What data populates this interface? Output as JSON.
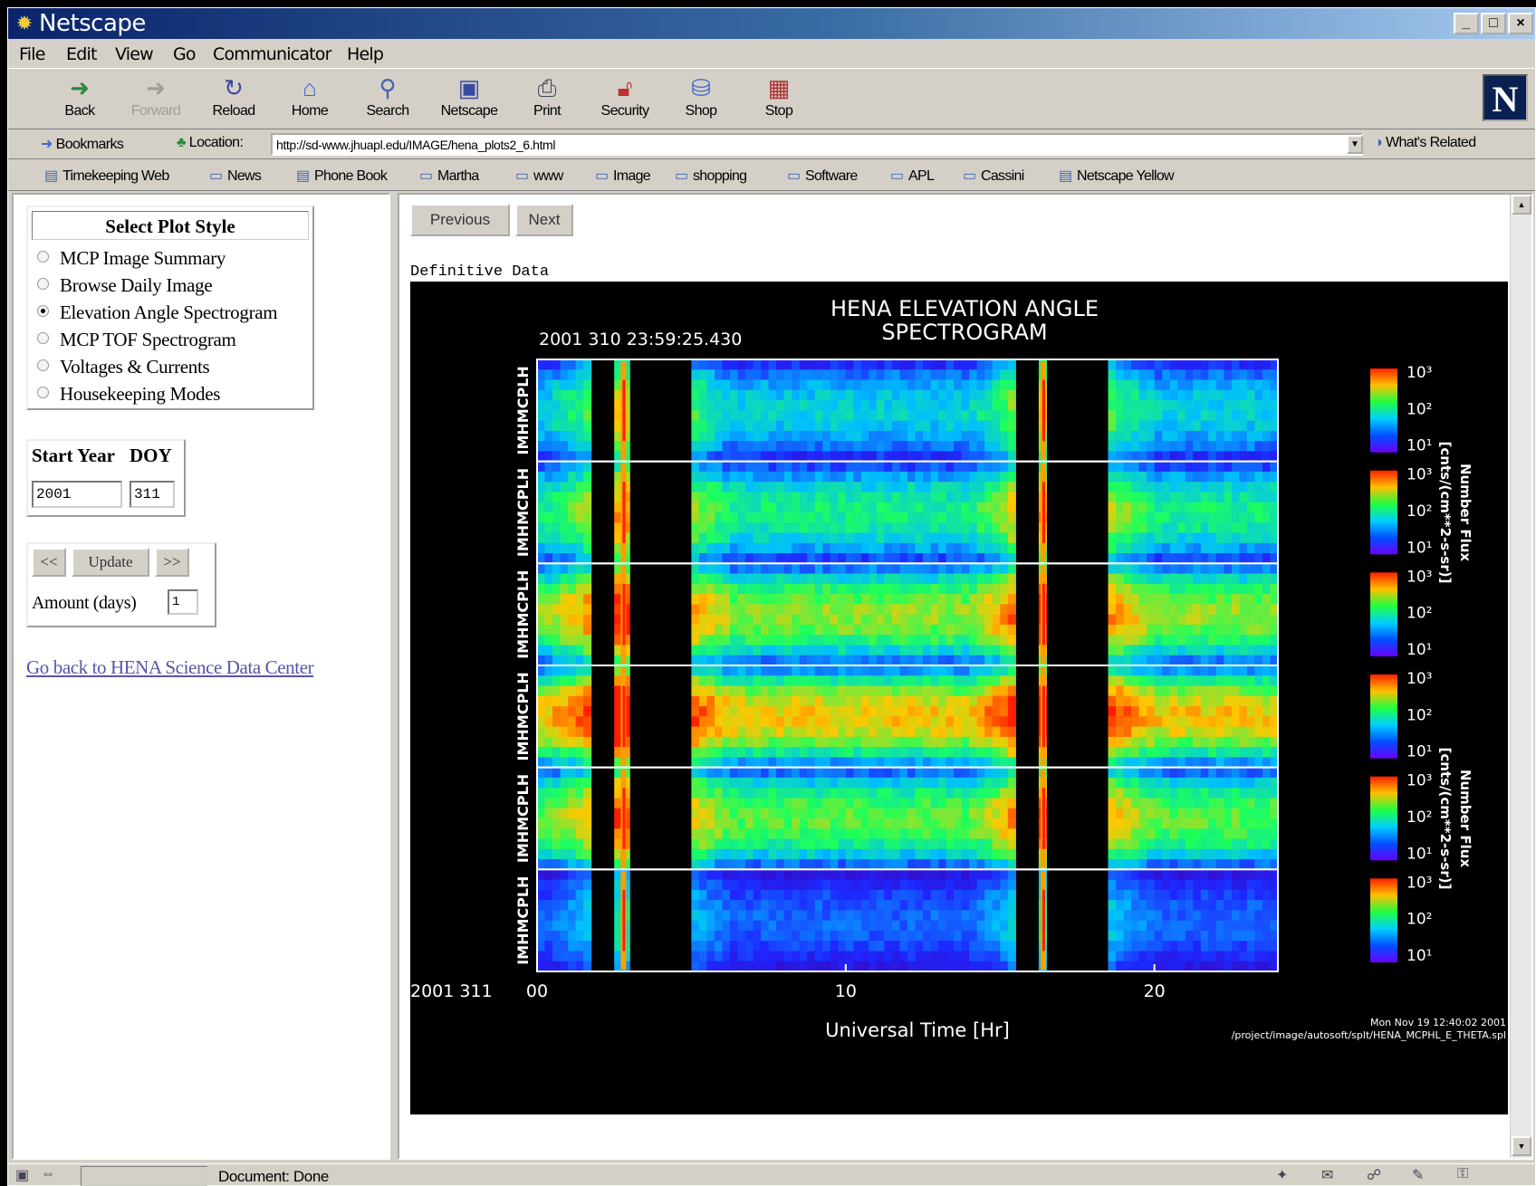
{
  "window": {
    "title": "Netscape"
  },
  "menu": [
    "File",
    "Edit",
    "View",
    "Go",
    "Communicator",
    "Help"
  ],
  "toolbar": {
    "buttons": [
      {
        "label": "Back",
        "icon": "back-arrow-icon"
      },
      {
        "label": "Forward",
        "icon": "forward-arrow-icon"
      },
      {
        "label": "Reload",
        "icon": "reload-icon"
      },
      {
        "label": "Home",
        "icon": "home-icon"
      },
      {
        "label": "Search",
        "icon": "search-icon"
      },
      {
        "label": "Netscape",
        "icon": "netscape-icon"
      },
      {
        "label": "Print",
        "icon": "print-icon"
      },
      {
        "label": "Security",
        "icon": "lock-icon"
      },
      {
        "label": "Shop",
        "icon": "shop-icon"
      },
      {
        "label": "Stop",
        "icon": "stop-icon"
      }
    ]
  },
  "location": {
    "bookmarks_label": "Bookmarks",
    "location_label": "Location:",
    "url": "http://sd-www.jhuapl.edu/IMAGE/hena_plots2_6.html",
    "related_label": "What's Related"
  },
  "personal_toolbar": [
    "Timekeeping Web",
    "News",
    "Phone Book",
    "Martha",
    "www",
    "Image",
    "shopping",
    "Software",
    "APL",
    "Cassini",
    "Netscape Yellow"
  ],
  "left": {
    "plot_style_title": "Select Plot Style",
    "options": [
      "MCP Image Summary",
      "Browse Daily Image",
      "Elevation Angle Spectrogram",
      "MCP TOF Spectrogram",
      "Voltages & Currents",
      "Housekeeping Modes"
    ],
    "selected_index": 2,
    "start_year_label": "Start Year",
    "doy_label": "DOY",
    "start_year": "2001",
    "doy": "311",
    "prev_btn": "<<",
    "update_btn": "Update",
    "next_btn": ">>",
    "amount_label": "Amount (days)",
    "amount": "1",
    "back_link": "Go back to HENA Science Data Center"
  },
  "right": {
    "previous_btn": "Previous",
    "next_btn": "Next",
    "definitive": "Definitive Data"
  },
  "chart_data": {
    "type": "heatmap",
    "title": [
      "HENA ELEVATION ANGLE",
      "SPECTROGRAM"
    ],
    "timestamp": "2001 310 23:59:25.430",
    "date_label": "2001 311",
    "panel_label": "IMHMCPLH",
    "panel_count": 6,
    "x_ticks": [
      "00",
      "10",
      "20"
    ],
    "x_tick_values": [
      0,
      10,
      20
    ],
    "xlim": [
      0,
      24
    ],
    "xlabel": "Universal Time   [Hr]",
    "colorbar_ticks": [
      "10³",
      "10²",
      "10¹"
    ],
    "colorbar_label": [
      "Number Flux",
      "[cnts/(cm**2-s-sr)]"
    ],
    "footer": [
      "Mon Nov 19 12:40:02 2001",
      "/project/image/autosoft/splt/HENA_MCPHL_E_THETA.spl"
    ],
    "panel_intensity": [
      0.45,
      0.55,
      0.7,
      0.8,
      0.65,
      0.35
    ],
    "data_gaps_hours": [
      [
        1.8,
        2.6
      ],
      [
        3.0,
        4.9
      ],
      [
        15.4,
        16.3
      ],
      [
        16.5,
        18.6
      ]
    ],
    "spikes_hours": [
      2.8,
      16.4
    ]
  },
  "status": {
    "message": "Document: Done"
  }
}
